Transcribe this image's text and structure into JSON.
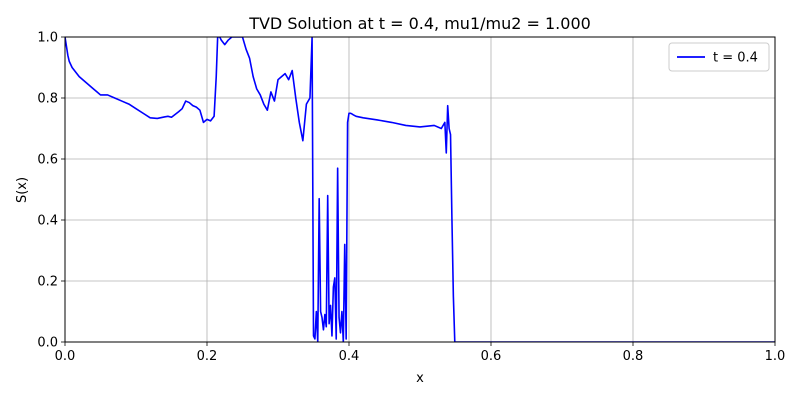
{
  "chart_data": {
    "type": "line",
    "title": "TVD Solution at t = 0.4, mu1/mu2 = 1.000",
    "xlabel": "x",
    "ylabel": "S(x)",
    "xlim": [
      0.0,
      1.0
    ],
    "ylim": [
      0.0,
      1.0
    ],
    "xticks": [
      0.0,
      0.2,
      0.4,
      0.6,
      0.8,
      1.0
    ],
    "xtick_labels": [
      "0.0",
      "0.2",
      "0.4",
      "0.6",
      "0.8",
      "1.0"
    ],
    "yticks": [
      0.0,
      0.2,
      0.4,
      0.6,
      0.8,
      1.0
    ],
    "ytick_labels": [
      "0.0",
      "0.2",
      "0.4",
      "0.6",
      "0.8",
      "1.0"
    ],
    "grid": true,
    "legend_position": "top-right",
    "series": [
      {
        "name": "t = 0.4",
        "color": "#0000ff",
        "x": [
          0.0,
          0.002,
          0.004,
          0.006,
          0.01,
          0.02,
          0.03,
          0.04,
          0.045,
          0.05,
          0.06,
          0.07,
          0.08,
          0.09,
          0.1,
          0.11,
          0.12,
          0.13,
          0.14,
          0.145,
          0.15,
          0.16,
          0.165,
          0.17,
          0.175,
          0.18,
          0.185,
          0.19,
          0.195,
          0.2,
          0.205,
          0.21,
          0.213,
          0.215,
          0.218,
          0.22,
          0.225,
          0.23,
          0.235,
          0.24,
          0.245,
          0.25,
          0.255,
          0.26,
          0.265,
          0.27,
          0.275,
          0.28,
          0.285,
          0.29,
          0.295,
          0.3,
          0.305,
          0.31,
          0.315,
          0.32,
          0.325,
          0.33,
          0.335,
          0.34,
          0.345,
          0.348,
          0.35,
          0.352,
          0.354,
          0.356,
          0.358,
          0.36,
          0.362,
          0.364,
          0.366,
          0.368,
          0.37,
          0.372,
          0.374,
          0.376,
          0.378,
          0.38,
          0.382,
          0.384,
          0.386,
          0.388,
          0.39,
          0.392,
          0.394,
          0.396,
          0.398,
          0.4,
          0.402,
          0.404,
          0.406,
          0.41,
          0.42,
          0.44,
          0.46,
          0.48,
          0.5,
          0.52,
          0.53,
          0.535,
          0.537,
          0.539,
          0.541,
          0.543,
          0.545,
          0.547,
          0.549,
          0.551,
          0.553,
          0.555,
          0.56,
          0.6,
          0.7,
          0.8,
          0.9,
          1.0
        ],
        "y": [
          1.0,
          0.97,
          0.94,
          0.92,
          0.9,
          0.87,
          0.85,
          0.83,
          0.82,
          0.81,
          0.81,
          0.8,
          0.79,
          0.78,
          0.765,
          0.75,
          0.735,
          0.733,
          0.738,
          0.74,
          0.737,
          0.755,
          0.765,
          0.79,
          0.785,
          0.775,
          0.77,
          0.76,
          0.72,
          0.73,
          0.725,
          0.74,
          0.87,
          1.0,
          1.0,
          0.99,
          0.975,
          0.99,
          1.0,
          1.0,
          1.0,
          1.0,
          0.96,
          0.93,
          0.87,
          0.83,
          0.81,
          0.78,
          0.76,
          0.82,
          0.79,
          0.86,
          0.87,
          0.88,
          0.86,
          0.89,
          0.8,
          0.72,
          0.66,
          0.78,
          0.8,
          1.0,
          0.02,
          0.01,
          0.1,
          0.0,
          0.47,
          0.1,
          0.08,
          0.04,
          0.09,
          0.05,
          0.48,
          0.06,
          0.12,
          0.02,
          0.18,
          0.21,
          0.01,
          0.57,
          0.08,
          0.03,
          0.1,
          0.0,
          0.32,
          0.01,
          0.72,
          0.75,
          0.75,
          0.748,
          0.745,
          0.74,
          0.735,
          0.728,
          0.72,
          0.71,
          0.705,
          0.71,
          0.7,
          0.72,
          0.62,
          0.775,
          0.7,
          0.68,
          0.4,
          0.15,
          0.0,
          0.0,
          0.0,
          0.0,
          0.0,
          0.0,
          0.0,
          0.0,
          0.0,
          0.0
        ]
      }
    ]
  }
}
